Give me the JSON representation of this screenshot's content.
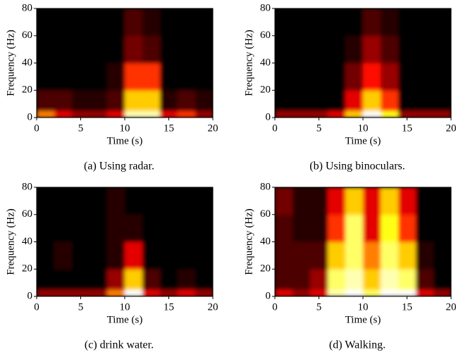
{
  "chart_data": [
    {
      "type": "heatmap",
      "caption": "(a) Using radar.",
      "xlabel": "Time (s)",
      "ylabel": "Frequency (Hz)",
      "colormap": "hot",
      "xlim": [
        0,
        20
      ],
      "xticks": [
        0,
        5,
        10,
        15,
        20
      ],
      "ylim": [
        0,
        80
      ],
      "yticks": [
        0,
        20,
        40,
        60,
        80
      ],
      "x_edges": [
        0,
        2,
        4,
        6,
        8,
        10,
        12,
        14,
        16,
        18,
        20
      ],
      "y_edges": [
        0,
        5,
        20,
        40,
        60,
        80
      ],
      "values": [
        [
          0.5,
          0.3,
          0.2,
          0.2,
          0.3,
          0.9,
          0.9,
          0.3,
          0.4,
          0.2
        ],
        [
          0.1,
          0.1,
          0.05,
          0.05,
          0.1,
          0.6,
          0.6,
          0.05,
          0.1,
          0.05
        ],
        [
          0,
          0,
          0,
          0,
          0.05,
          0.4,
          0.4,
          0,
          0,
          0
        ],
        [
          0,
          0,
          0,
          0,
          0,
          0.15,
          0.1,
          0,
          0,
          0
        ],
        [
          0,
          0,
          0,
          0,
          0,
          0.1,
          0.05,
          0,
          0,
          0
        ]
      ]
    },
    {
      "type": "heatmap",
      "caption": "(b) Using binoculars.",
      "xlabel": "Time (s)",
      "ylabel": "Frequency (Hz)",
      "colormap": "hot",
      "xlim": [
        0,
        20
      ],
      "xticks": [
        0,
        5,
        10,
        15,
        20
      ],
      "ylim": [
        0,
        80
      ],
      "yticks": [
        0,
        20,
        40,
        60,
        80
      ],
      "x_edges": [
        0,
        2,
        4,
        6,
        8,
        10,
        12,
        14,
        16,
        18,
        20
      ],
      "y_edges": [
        0,
        5,
        20,
        40,
        60,
        80
      ],
      "values": [
        [
          0.2,
          0.2,
          0.2,
          0.3,
          0.6,
          1,
          0.7,
          0.2,
          0.2,
          0.2
        ],
        [
          0,
          0,
          0,
          0,
          0.3,
          0.6,
          0.4,
          0,
          0,
          0
        ],
        [
          0,
          0,
          0,
          0,
          0.15,
          0.35,
          0.2,
          0,
          0,
          0
        ],
        [
          0,
          0,
          0,
          0,
          0.05,
          0.2,
          0.1,
          0,
          0,
          0
        ],
        [
          0,
          0,
          0,
          0,
          0,
          0.1,
          0.05,
          0,
          0,
          0
        ]
      ]
    },
    {
      "type": "heatmap",
      "caption": "(c) drink water.",
      "xlabel": "Time (s)",
      "ylabel": "Frequency (Hz)",
      "colormap": "hot",
      "xlim": [
        0,
        20
      ],
      "xticks": [
        0,
        5,
        10,
        15,
        20
      ],
      "ylim": [
        0,
        80
      ],
      "yticks": [
        0,
        20,
        40,
        60,
        80
      ],
      "x_edges": [
        0,
        2,
        4,
        6,
        8,
        10,
        12,
        14,
        16,
        18,
        20
      ],
      "y_edges": [
        0,
        5,
        20,
        40,
        60,
        80
      ],
      "values": [
        [
          0.2,
          0.2,
          0.2,
          0.2,
          0.5,
          1,
          0.3,
          0.2,
          0.3,
          0.2
        ],
        [
          0,
          0,
          0,
          0,
          0.2,
          0.6,
          0.1,
          0,
          0.05,
          0
        ],
        [
          0,
          0.05,
          0,
          0,
          0.05,
          0.3,
          0,
          0,
          0,
          0
        ],
        [
          0,
          0,
          0,
          0,
          0.05,
          0.05,
          0,
          0,
          0,
          0
        ],
        [
          0,
          0,
          0,
          0,
          0.05,
          0,
          0,
          0,
          0,
          0
        ]
      ]
    },
    {
      "type": "heatmap",
      "caption": "(d) Walking.",
      "xlabel": "Time (s)",
      "ylabel": "Frequency (Hz)",
      "colormap": "hot",
      "xlim": [
        0,
        20
      ],
      "xticks": [
        0,
        5,
        10,
        15,
        20
      ],
      "ylim": [
        0,
        80
      ],
      "yticks": [
        0,
        20,
        40,
        60,
        80
      ],
      "x_edges": [
        0,
        2,
        4,
        6,
        8,
        10,
        12,
        14,
        16,
        18,
        20
      ],
      "y_edges": [
        0,
        5,
        20,
        40,
        60,
        80
      ],
      "values": [
        [
          0.3,
          0.2,
          0.3,
          0.9,
          1,
          0.8,
          1,
          1,
          0.3,
          0.2
        ],
        [
          0.1,
          0.1,
          0.2,
          0.8,
          0.9,
          0.6,
          0.9,
          0.8,
          0.1,
          0
        ],
        [
          0.1,
          0.1,
          0.1,
          0.6,
          0.8,
          0.5,
          0.8,
          0.6,
          0.05,
          0
        ],
        [
          0.1,
          0.05,
          0.05,
          0.4,
          0.8,
          0.3,
          0.7,
          0.4,
          0,
          0
        ],
        [
          0.15,
          0.05,
          0.05,
          0.3,
          0.6,
          0.3,
          0.6,
          0.3,
          0,
          0
        ]
      ]
    }
  ]
}
